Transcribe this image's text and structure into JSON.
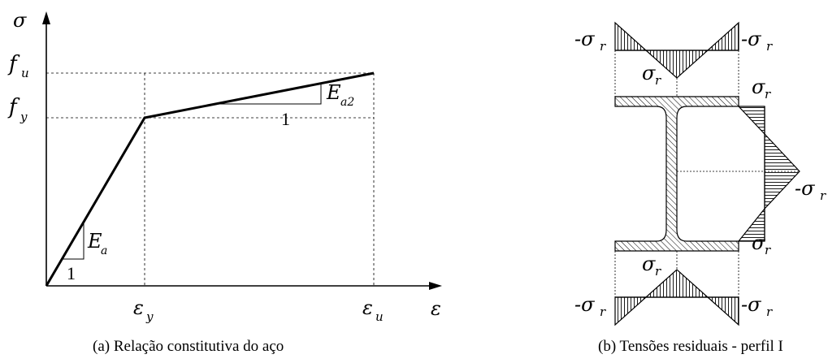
{
  "figure_a": {
    "axis_y": "σ",
    "axis_x": "ε",
    "fu": "f",
    "fu_sub": "u",
    "fy": "f",
    "fy_sub": "y",
    "eps_y": "ε",
    "eps_y_sub": "y",
    "eps_u": "ε",
    "eps_u_sub": "u",
    "Ea": "E",
    "Ea_sub": "a",
    "Ea2": "E",
    "Ea2_sub": "a2",
    "slope_one_a": "1",
    "slope_one_b": "1",
    "caption": "(a) Relação constitutiva do aço"
  },
  "figure_b": {
    "minus_sigma_r": "-σ",
    "sigma_r": "σ",
    "sub_r": "r",
    "caption": "(b) Tensões residuais - perfil I"
  }
}
